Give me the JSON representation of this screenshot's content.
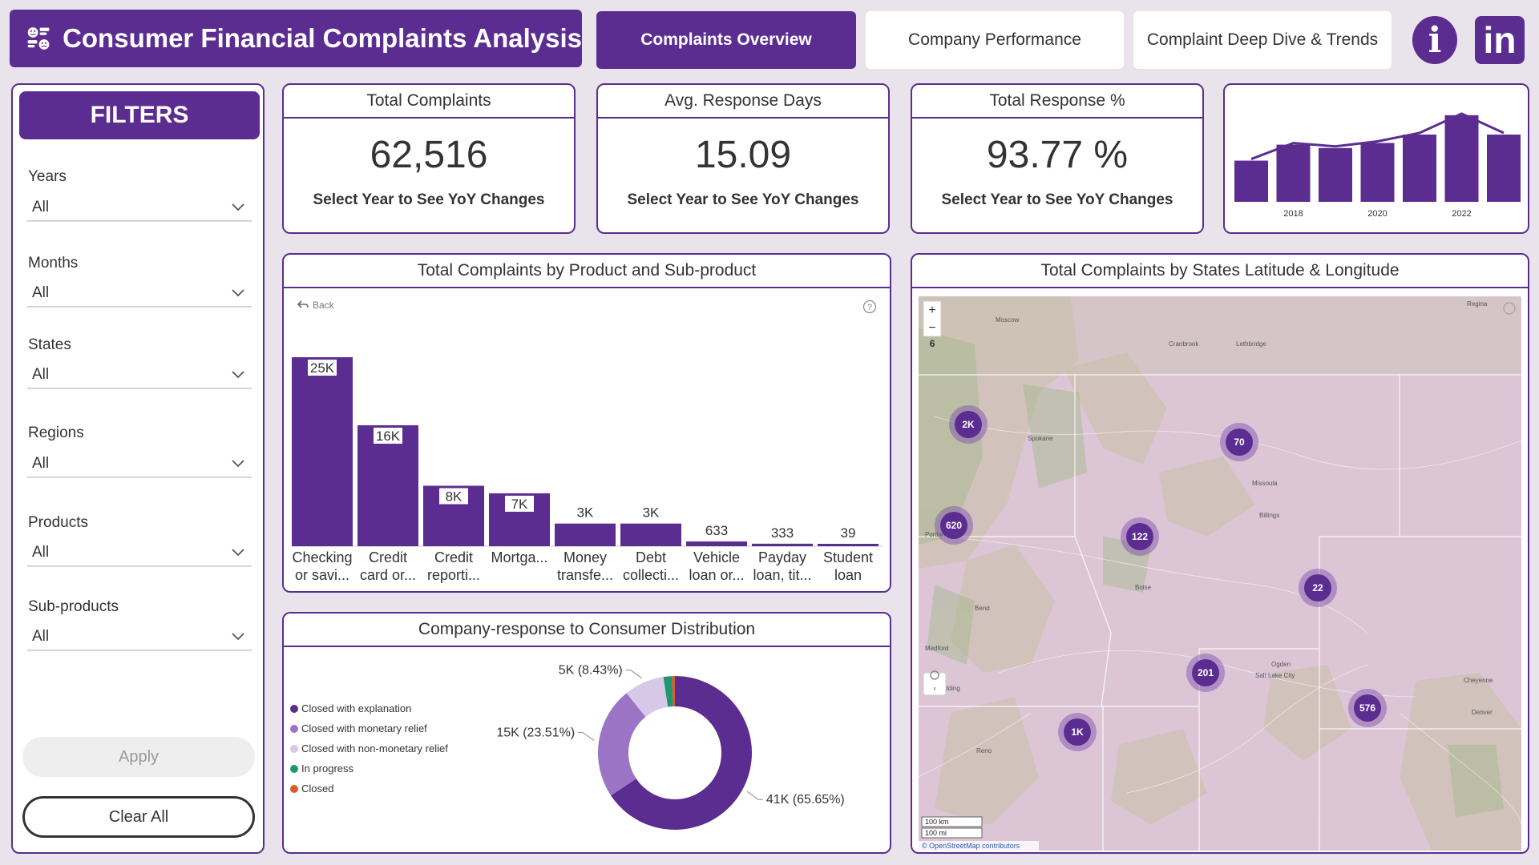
{
  "header": {
    "title": "Consumer Financial Complaints Analysis",
    "tabs": [
      {
        "label": "Complaints Overview"
      },
      {
        "label": "Company Performance"
      },
      {
        "label": "Complaint Deep Dive & Trends"
      }
    ],
    "info_label": "i",
    "linkedin_label": "in"
  },
  "filters": {
    "title": "FILTERS",
    "items": [
      {
        "label": "Years",
        "value": "All"
      },
      {
        "label": "Months",
        "value": "All"
      },
      {
        "label": "States",
        "value": "All"
      },
      {
        "label": "Regions",
        "value": "All"
      },
      {
        "label": "Products",
        "value": "All"
      },
      {
        "label": "Sub-products",
        "value": "All"
      }
    ],
    "apply_label": "Apply",
    "clear_label": "Clear All"
  },
  "kpis": [
    {
      "title": "Total Complaints",
      "value": "62,516",
      "sub": "Select Year to See YoY Changes"
    },
    {
      "title": "Avg. Response Days",
      "value": "15.09",
      "sub": "Select Year to See YoY Changes"
    },
    {
      "title": "Total Response %",
      "value": "93.77 %",
      "sub": "Select Year to See YoY Changes"
    }
  ],
  "trend": {
    "tick_labels": [
      "2018",
      "2020",
      "2022"
    ],
    "chart_data": {
      "type": "bar",
      "categories": [
        "",
        "2018",
        "",
        "2020",
        "",
        "2022",
        ""
      ],
      "values": [
        4.9,
        6.8,
        6.4,
        7.0,
        8.0,
        10.3,
        8.0
      ],
      "ylim": [
        0,
        12
      ],
      "line_overlay": true,
      "color": "#5c2d91"
    }
  },
  "product_chart": {
    "title": "Total Complaints by Product and Sub-product",
    "back_label": "Back",
    "chart_data": {
      "type": "bar",
      "categories": [
        [
          "Checking",
          "or savi..."
        ],
        [
          "Credit",
          "card or..."
        ],
        [
          "Credit",
          "reporti..."
        ],
        [
          "Mortga...",
          ""
        ],
        [
          "Money",
          "transfe..."
        ],
        [
          "Debt",
          "collecti..."
        ],
        [
          "Vehicle",
          "loan or..."
        ],
        [
          "Payday",
          "loan, tit..."
        ],
        [
          "Student",
          "loan"
        ]
      ],
      "values": [
        25000,
        16000,
        8000,
        7000,
        3000,
        3000,
        633,
        333,
        39
      ],
      "labels": [
        "25K",
        "16K",
        "8K",
        "7K",
        "3K",
        "3K",
        "633",
        "333",
        "39"
      ],
      "ylim": [
        0,
        25000
      ],
      "color": "#5c2d91"
    }
  },
  "response_chart": {
    "title": "Company-response to Consumer Distribution",
    "chart_data": {
      "type": "pie",
      "series": [
        {
          "name": "Closed with explanation",
          "value": 65.65,
          "label": "41K (65.65%)",
          "color": "#5c2d91"
        },
        {
          "name": "Closed with monetary relief",
          "value": 23.51,
          "label": "15K (23.51%)",
          "color": "#9c74c6"
        },
        {
          "name": "Closed with non-monetary relief",
          "value": 8.43,
          "label": "5K (8.43%)",
          "color": "#d8c8e8"
        },
        {
          "name": "In progress",
          "value": 1.8,
          "label": "",
          "color": "#1f9770"
        },
        {
          "name": "Closed",
          "value": 0.61,
          "label": "",
          "color": "#e05a2b"
        }
      ]
    }
  },
  "map": {
    "title": "Total Complaints by States Latitude & Longitude",
    "zoom_in": "+",
    "zoom_out": "−",
    "zoom_level": "6",
    "scale_km": "100 km",
    "scale_mi": "100 mi",
    "attribution": "© OpenStreetMap contributors",
    "place_labels": [
      "Moscow",
      "Spokane",
      "Missoula",
      "Boise",
      "Salt Lake City",
      "Portland",
      "Bend",
      "Billings",
      "Ogden",
      "Medford",
      "Redding",
      "Lethbridge",
      "Cranbrook",
      "Regina",
      "Cheyenne",
      "Denver",
      "Reno"
    ],
    "clusters": [
      {
        "label": "2K"
      },
      {
        "label": "70"
      },
      {
        "label": "620"
      },
      {
        "label": "122"
      },
      {
        "label": "22"
      },
      {
        "label": "201"
      },
      {
        "label": "576"
      },
      {
        "label": "1K"
      }
    ]
  }
}
